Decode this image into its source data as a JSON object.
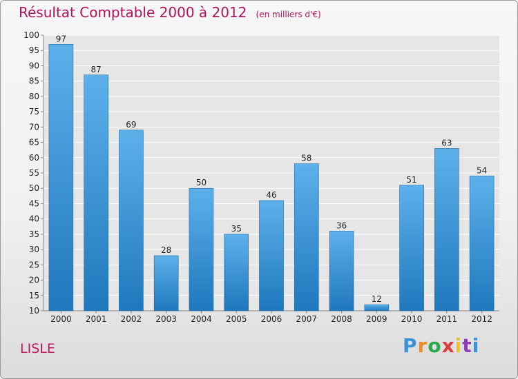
{
  "header": {
    "title": "Résultat Comptable 2000 à 2012",
    "subtitle": "(en milliers d'€)"
  },
  "footer": {
    "place": "LISLE",
    "brand": "Proxiti",
    "brand_colors": [
      "#3b8fd8",
      "#f08a1c",
      "#2aa84a",
      "#e23a3a",
      "#f1c31a",
      "#8a3fb6",
      "#3b8fd8"
    ]
  },
  "chart_data": {
    "type": "bar",
    "title": "Résultat Comptable 2000 à 2012",
    "subtitle": "(en milliers d'€)",
    "xlabel": "",
    "ylabel": "",
    "categories": [
      "2000",
      "2001",
      "2002",
      "2003",
      "2004",
      "2005",
      "2006",
      "2007",
      "2008",
      "2009",
      "2010",
      "2011",
      "2012"
    ],
    "values": [
      97,
      87,
      69,
      28,
      50,
      35,
      46,
      58,
      36,
      12,
      51,
      63,
      54
    ],
    "ylim": [
      10,
      100
    ],
    "yticks": [
      10,
      15,
      20,
      25,
      30,
      35,
      40,
      45,
      50,
      55,
      60,
      65,
      70,
      75,
      80,
      85,
      90,
      95,
      100
    ],
    "grid": true,
    "bar_color_top": "#5db0ea",
    "bar_color_bottom": "#1f78bd"
  }
}
